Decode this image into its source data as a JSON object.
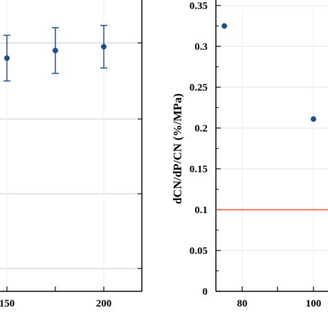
{
  "chart_data": [
    {
      "type": "scatter",
      "title": "",
      "xlabel": "",
      "ylabel": "",
      "x_ticks": [
        "150",
        "200"
      ],
      "grid": true,
      "series": [
        {
          "points": [
            {
              "x": 150,
              "y": 0.88,
              "err": 0.03
            },
            {
              "x": 175,
              "y": 0.89,
              "err": 0.03
            },
            {
              "x": 200,
              "y": 0.895,
              "err": 0.028
            }
          ],
          "color": "#1f4e8c"
        }
      ]
    },
    {
      "type": "scatter",
      "title": "",
      "xlabel": "",
      "ylabel": "dCN/dP/CN (%/MPa)",
      "ylim": [
        0,
        0.35
      ],
      "y_ticks": [
        "0",
        "0.05",
        "0.1",
        "0.15",
        "0.2",
        "0.25",
        "0.3",
        "0.35"
      ],
      "x_ticks": [
        "80",
        "100"
      ],
      "grid": true,
      "series": [
        {
          "points": [
            {
              "x": 75,
              "y": 0.325
            },
            {
              "x": 100,
              "y": 0.211
            }
          ],
          "color": "#1f4e8c"
        }
      ],
      "reference_line": {
        "y": 0.1,
        "color": "#e8542a"
      }
    }
  ]
}
